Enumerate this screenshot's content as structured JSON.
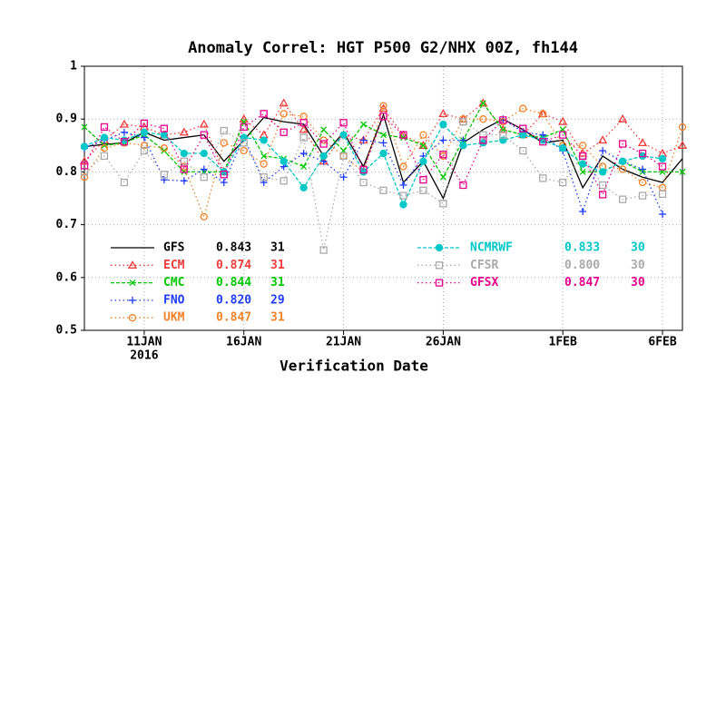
{
  "chart_data": {
    "type": "line",
    "title": "Anomaly Correl: HGT P500 G2/NHX 00Z, fh144",
    "x_label": "Verification Date",
    "year_label": "2016",
    "categories": [
      null,
      null,
      null,
      "11JAN",
      null,
      null,
      null,
      null,
      "16JAN",
      null,
      null,
      null,
      null,
      "21JAN",
      null,
      null,
      null,
      null,
      "26JAN",
      null,
      null,
      null,
      null,
      null,
      "1FEB",
      null,
      null,
      null,
      null,
      "6FEB",
      null
    ],
    "ylim": [
      0.5,
      1
    ],
    "yticks": [
      0.5,
      0.6,
      0.7,
      0.8,
      0.9,
      1
    ],
    "grid": true,
    "series": [
      {
        "name": "GFS",
        "color": "#000000",
        "line_style": "solid",
        "marker": "none",
        "score": 0.843,
        "count": 31,
        "values": [
          0.848,
          0.852,
          0.855,
          0.875,
          0.86,
          0.865,
          0.87,
          0.82,
          0.86,
          0.903,
          0.895,
          0.89,
          0.83,
          0.875,
          0.81,
          0.908,
          0.78,
          0.82,
          0.75,
          0.855,
          0.88,
          0.9,
          0.88,
          0.855,
          0.86,
          0.77,
          0.83,
          0.805,
          0.79,
          0.78,
          0.825
        ]
      },
      {
        "name": "ECM",
        "color": "#f03c3c",
        "line_style": "dotted",
        "marker": "triangle",
        "score": 0.874,
        "count": 31,
        "values": [
          0.82,
          0.86,
          0.89,
          0.885,
          0.87,
          0.875,
          0.89,
          0.8,
          0.9,
          0.87,
          0.93,
          0.88,
          0.82,
          0.87,
          0.86,
          0.92,
          0.87,
          0.85,
          0.91,
          0.9,
          0.93,
          0.88,
          0.87,
          0.91,
          0.895,
          0.835,
          0.86,
          0.9,
          0.855,
          0.835,
          0.85
        ]
      },
      {
        "name": "CMC",
        "color": "#00c800",
        "line_style": "dashed",
        "marker": "x",
        "score": 0.844,
        "count": 31,
        "values": [
          0.885,
          0.85,
          0.855,
          0.87,
          0.84,
          0.8,
          0.8,
          0.8,
          0.895,
          0.83,
          0.825,
          0.81,
          0.88,
          0.84,
          0.89,
          0.87,
          0.865,
          0.85,
          0.79,
          0.86,
          0.93,
          0.88,
          0.87,
          0.865,
          0.88,
          0.8,
          0.8,
          0.82,
          0.8,
          0.8,
          0.8
        ]
      },
      {
        "name": "FNO",
        "color": "#1e3cff",
        "line_style": "dotted",
        "marker": "plus",
        "score": 0.82,
        "count": 29,
        "values": [
          0.845,
          0.86,
          0.875,
          0.865,
          0.785,
          0.783,
          0.805,
          0.78,
          0.865,
          0.78,
          0.81,
          0.835,
          0.82,
          0.79,
          0.86,
          0.855,
          0.775,
          0.83,
          0.86,
          0.86,
          null,
          0.9,
          0.875,
          0.87,
          0.84,
          0.725,
          0.84,
          0.82,
          0.805,
          0.72,
          null
        ]
      },
      {
        "name": "UKM",
        "color": "#f08228",
        "line_style": "dotted",
        "marker": "circle",
        "score": 0.847,
        "count": 31,
        "values": [
          0.79,
          0.845,
          0.855,
          0.85,
          0.845,
          0.81,
          0.715,
          0.855,
          0.84,
          0.815,
          0.91,
          0.905,
          0.86,
          0.83,
          0.8,
          0.925,
          0.81,
          0.87,
          0.83,
          0.9,
          0.9,
          0.895,
          0.92,
          0.91,
          0.85,
          0.85,
          0.81,
          0.805,
          0.78,
          0.77,
          0.885
        ]
      },
      {
        "name": "NCMRWF",
        "color": "#00c8c8",
        "line_style": "dashed",
        "marker": "filled-circle",
        "score": 0.833,
        "count": 30,
        "values": [
          0.848,
          0.865,
          0.86,
          0.875,
          0.87,
          0.835,
          0.835,
          0.8,
          0.865,
          0.86,
          0.82,
          0.77,
          0.83,
          0.87,
          0.8,
          0.835,
          0.738,
          0.82,
          0.89,
          0.85,
          0.855,
          0.86,
          0.87,
          0.86,
          0.845,
          0.815,
          0.8,
          0.82,
          0.83,
          0.825,
          null
        ]
      },
      {
        "name": "CFSR",
        "color": "#aaaaaa",
        "line_style": "dotted",
        "marker": "square",
        "score": 0.8,
        "count": 30,
        "values": [
          0.8,
          0.83,
          0.78,
          0.84,
          0.795,
          0.82,
          0.79,
          0.878,
          0.855,
          0.79,
          0.783,
          0.865,
          0.652,
          0.83,
          0.78,
          0.765,
          0.755,
          0.765,
          0.74,
          0.895,
          0.87,
          0.87,
          0.84,
          0.788,
          0.78,
          0.83,
          0.775,
          0.748,
          0.755,
          0.758,
          null
        ]
      },
      {
        "name": "GFSX",
        "color": "#e6008c",
        "line_style": "dotted",
        "marker": "square",
        "score": 0.847,
        "count": 30,
        "values": [
          0.812,
          0.885,
          0.857,
          0.892,
          0.882,
          0.805,
          0.87,
          0.795,
          0.885,
          0.91,
          0.875,
          0.893,
          0.853,
          0.893,
          0.804,
          0.905,
          0.87,
          0.785,
          0.833,
          0.775,
          0.86,
          0.898,
          0.882,
          0.857,
          0.87,
          0.83,
          0.757,
          0.853,
          0.835,
          0.81,
          null
        ]
      }
    ]
  }
}
